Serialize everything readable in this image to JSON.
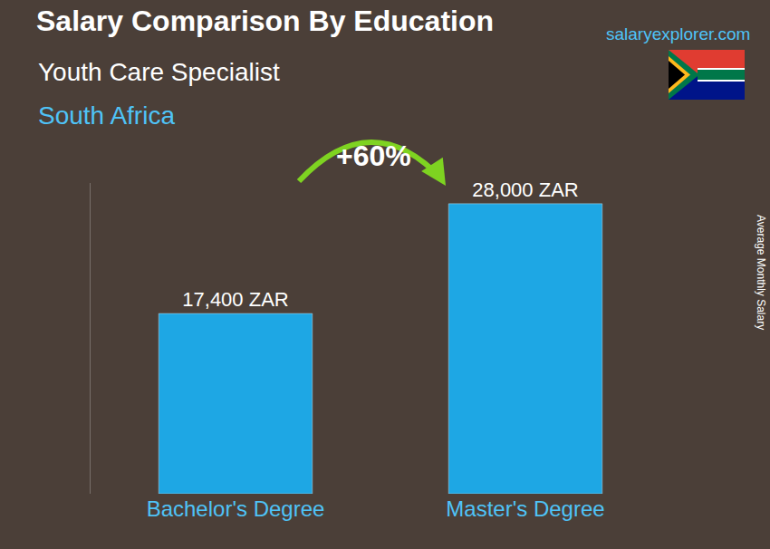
{
  "chart_data": {
    "type": "bar",
    "title": "Salary Comparison By Education",
    "subtitle": "Youth Care Specialist",
    "region": "South Africa",
    "source": "salaryexplorer.com",
    "y_label": "Average Monthly Salary",
    "annotation": "+60%",
    "categories": [
      "Bachelor's Degree",
      "Master's Degree"
    ],
    "values": [
      17400,
      28000
    ],
    "value_labels": [
      "17,400 ZAR",
      "28,000 ZAR"
    ],
    "color": "#1ea7e4",
    "ylim": [
      0,
      30000
    ],
    "data_labels": true,
    "tick_labels": "x",
    "grid": false
  }
}
